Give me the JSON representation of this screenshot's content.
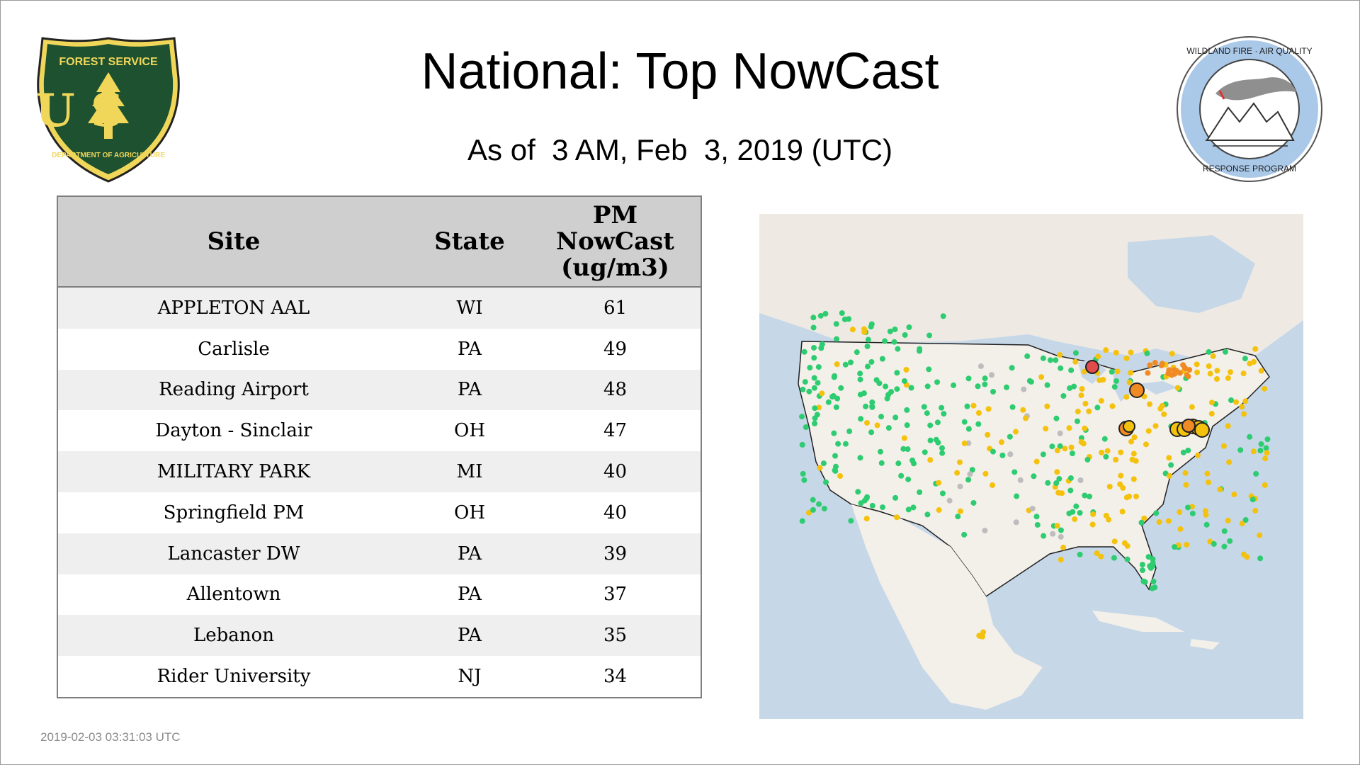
{
  "header": {
    "title": "National: Top NowCast",
    "subtitle": "As of  3 AM, Feb  3, 2019 (UTC)"
  },
  "logos": {
    "left": {
      "icon": "forest-service-shield-icon",
      "top_text": "FOREST SERVICE",
      "letters": "U S",
      "bottom_text": "DEPARTMENT OF AGRICULTURE"
    },
    "right": {
      "icon": "wildland-fire-air-quality-badge-icon",
      "top_text": "WILDLAND FIRE · AIR QUALITY",
      "bottom_text": "RESPONSE PROGRAM"
    }
  },
  "table": {
    "headers": {
      "site": "Site",
      "state": "State",
      "pm_line1": "PM",
      "pm_line2": "NowCast",
      "pm_line3": "(ug/m3)"
    },
    "rows": [
      {
        "site": "APPLETON AAL",
        "state": "WI",
        "value": "61"
      },
      {
        "site": "Carlisle",
        "state": "PA",
        "value": "49"
      },
      {
        "site": "Reading Airport",
        "state": "PA",
        "value": "48"
      },
      {
        "site": "Dayton - Sinclair",
        "state": "OH",
        "value": "47"
      },
      {
        "site": "MILITARY PARK",
        "state": "MI",
        "value": "40"
      },
      {
        "site": "Springfield PM",
        "state": "OH",
        "value": "40"
      },
      {
        "site": "Lancaster DW",
        "state": "PA",
        "value": "39"
      },
      {
        "site": "Allentown",
        "state": "PA",
        "value": "37"
      },
      {
        "site": "Lebanon",
        "state": "PA",
        "value": "35"
      },
      {
        "site": "Rider University",
        "state": "NJ",
        "value": "34"
      }
    ]
  },
  "map": {
    "icon": "us-air-quality-map",
    "colors": {
      "good": "#2ecc71",
      "moderate": "#f4c20d",
      "usg": "#f08a24",
      "unhealthy": "#e04b4b",
      "no_data": "#bdbdbd",
      "land": "#f3efe9",
      "water": "#c6d7e8"
    }
  },
  "footer": {
    "timestamp": "2019-02-03 03:31:03 UTC"
  }
}
